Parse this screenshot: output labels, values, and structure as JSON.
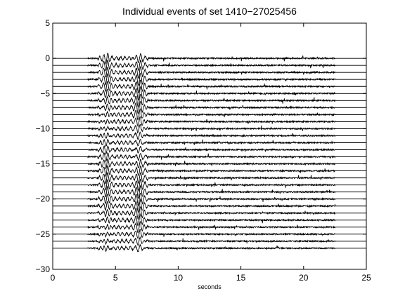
{
  "chart_data": {
    "type": "line",
    "title": "Individual events of set 1410−27025456",
    "xlabel": "seconds",
    "ylabel": "",
    "xlim": [
      0,
      25
    ],
    "ylim": [
      -30,
      5
    ],
    "xticks": [
      0,
      5,
      10,
      15,
      20,
      25
    ],
    "xtick_labels": [
      "0",
      "5",
      "10",
      "15",
      "20",
      "25"
    ],
    "yticks": [
      5,
      0,
      -5,
      -10,
      -15,
      -20,
      -25,
      -30
    ],
    "ytick_labels": [
      "5",
      "0",
      "−5",
      "−10",
      "−15",
      "−20",
      "−25",
      "−30"
    ],
    "grid": false,
    "legend": "none",
    "series_color": "#000000",
    "trace_count": 28,
    "trace_spacing": 1,
    "trace_offsets_start": 0,
    "signal_start_s": 2.8,
    "primary_arrival_s": 4.3,
    "secondary_arrival_s": 6.9,
    "signal_end_s": 22.5
  }
}
